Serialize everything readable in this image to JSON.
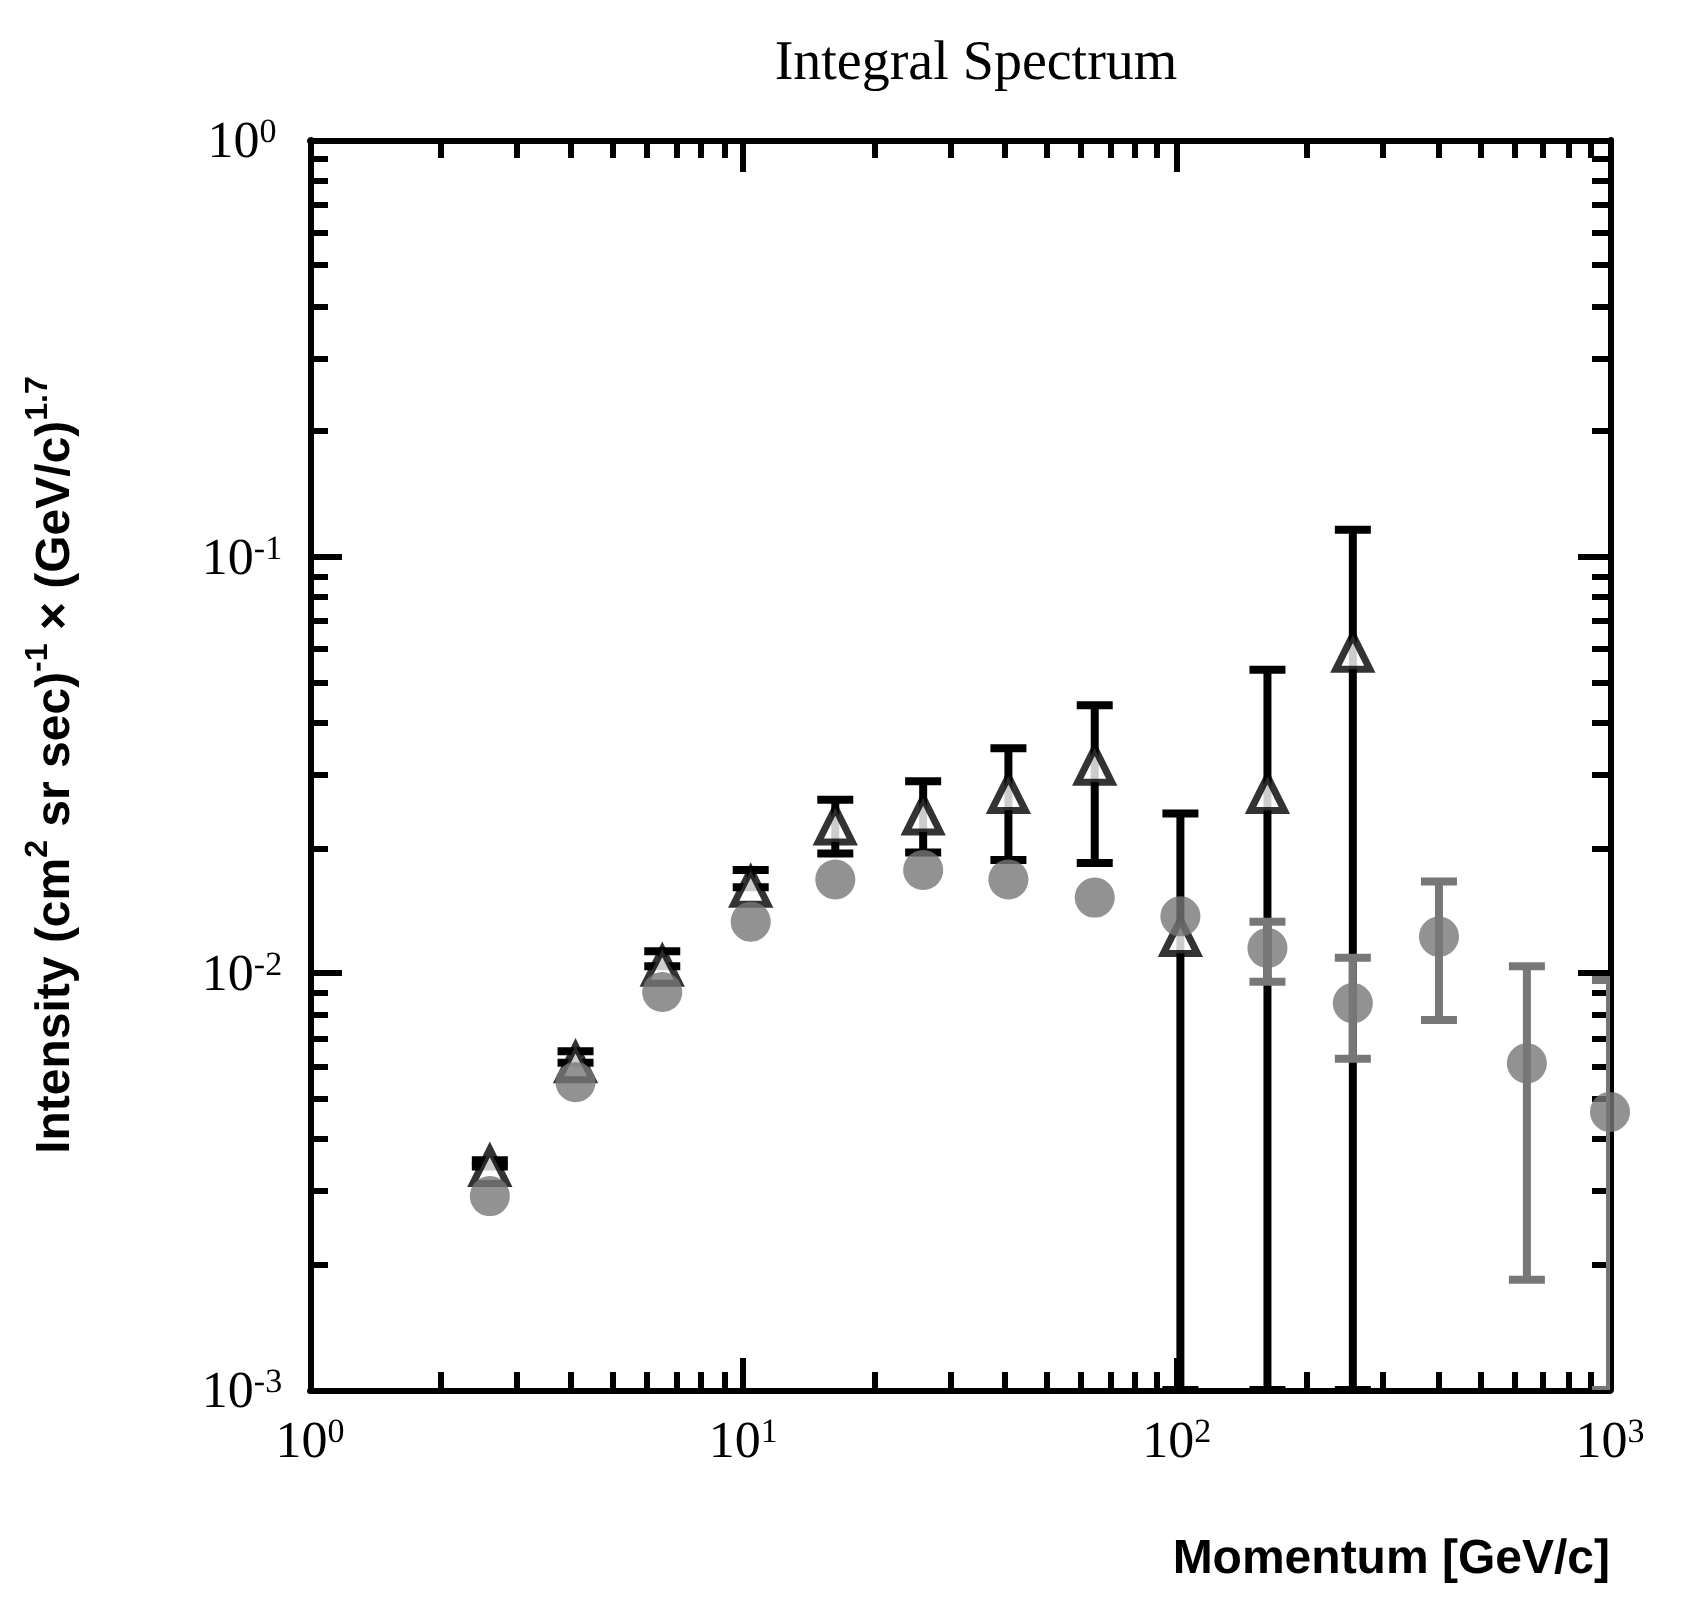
{
  "chart_data": {
    "type": "scatter",
    "title": "Integral Spectrum",
    "xlabel": "Momentum [GeV/c]",
    "ylabel": "Intensity (cm$^{2}$ sr sec)$^{-1}$ × (GeV/c)$^{1.7}$",
    "log": "xy",
    "grid": false,
    "xlim": [
      1,
      1000
    ],
    "ylim": [
      0.001,
      1
    ],
    "xticks": [
      {
        "value": 1,
        "label": "10$^{0}$"
      },
      {
        "value": 10,
        "label": "10$^{1}$"
      },
      {
        "value": 100,
        "label": "10$^{2}$"
      },
      {
        "value": 1000,
        "label": "10$^{3}$"
      }
    ],
    "yticks": [
      {
        "value": 0.001,
        "label": "10$^{-3}$"
      },
      {
        "value": 0.01,
        "label": "10$^{-2}$"
      },
      {
        "value": 0.1,
        "label": "10$^{-1}$"
      },
      {
        "value": 1,
        "label": "10$^{0}$"
      }
    ],
    "series": [
      {
        "color": "#000000",
        "marker": "triangle",
        "x": [
          2.6,
          4.1,
          6.5,
          10.4,
          16.3,
          26,
          40.9,
          64.7,
          102,
          162,
          255
        ],
        "values": [
          0.00344,
          0.0061,
          0.0104,
          0.0161,
          0.0227,
          0.024,
          0.027,
          0.0316,
          0.01225,
          0.027,
          0.059
        ],
        "errors": [
          [
            0.00344,
            0.00356
          ],
          [
            0.0061,
            0.0065
          ],
          [
            0.0104,
            0.0113
          ],
          [
            0.0161,
            0.0177
          ],
          [
            0.0194,
            0.0261
          ],
          [
            0.0195,
            0.0289
          ],
          [
            0.0187,
            0.0347
          ],
          [
            0.0184,
            0.044
          ],
          [
            0.001,
            0.0242
          ],
          [
            0.001,
            0.0535
          ],
          [
            0.001,
            0.116
          ]
        ]
      },
      {
        "color": "#777777",
        "marker": "circle",
        "x": [
          2.6,
          4.1,
          6.5,
          10.4,
          16.3,
          26,
          40.9,
          64.7,
          102,
          162,
          255,
          403,
          643,
          1000
        ],
        "values": [
          0.00292,
          0.00548,
          0.00902,
          0.0133,
          0.0168,
          0.0177,
          0.0168,
          0.0152,
          0.0137,
          0.0115,
          0.00848,
          0.01225,
          0.00608,
          0.00465
        ],
        "errors": [
          null,
          null,
          null,
          null,
          null,
          null,
          null,
          null,
          null,
          [
            0.00955,
            0.0133
          ],
          [
            0.00624,
            0.0109
          ],
          [
            0.00773,
            0.0166
          ],
          [
            0.00184,
            0.0104
          ],
          [
            0.001,
            0.00964
          ]
        ]
      }
    ]
  }
}
